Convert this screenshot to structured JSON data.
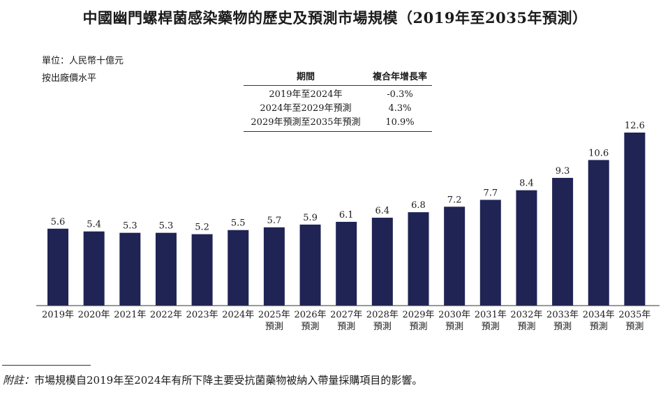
{
  "title": "中國幽門螺桿菌感染藥物的歷史及預測市場規模（2019年至2035年預測）",
  "unit_lines": [
    "單位：人民幣十億元",
    "按出廠價水平"
  ],
  "cagr_table": {
    "headers": [
      "期間",
      "複合年增長率"
    ],
    "rows": [
      {
        "period": "2019年至2024年",
        "rate": "-0.3%"
      },
      {
        "period": "2024年至2029年預測",
        "rate": "4.3%"
      },
      {
        "period": "2029年預測至2035年預測",
        "rate": "10.9%"
      }
    ]
  },
  "footnote": {
    "label": "附註：",
    "text": "市場規模自2019年至2024年有所下降主要受抗菌藥物被納入帶量採購項目的影響。"
  },
  "colors": {
    "bar": "#1f2455",
    "axis": "#333333",
    "text": "#1a1a1a"
  },
  "chart_data": {
    "type": "bar",
    "title": "中國幽門螺桿菌感染藥物的歷史及預測市場規模（2019年至2035年預測）",
    "ylabel": "人民幣十億元",
    "xlabel": "",
    "ylim": [
      0,
      12.6
    ],
    "grid": false,
    "categories": [
      [
        "2019年"
      ],
      [
        "2020年"
      ],
      [
        "2021年"
      ],
      [
        "2022年"
      ],
      [
        "2023年"
      ],
      [
        "2024年"
      ],
      [
        "2025年",
        "預測"
      ],
      [
        "2026年",
        "預測"
      ],
      [
        "2027年",
        "預測"
      ],
      [
        "2028年",
        "預測"
      ],
      [
        "2029年",
        "預測"
      ],
      [
        "2030年",
        "預測"
      ],
      [
        "2031年",
        "預測"
      ],
      [
        "2032年",
        "預測"
      ],
      [
        "2033年",
        "預測"
      ],
      [
        "2034年",
        "預測"
      ],
      [
        "2035年",
        "預測"
      ]
    ],
    "values": [
      5.6,
      5.4,
      5.3,
      5.3,
      5.2,
      5.5,
      5.7,
      5.9,
      6.1,
      6.4,
      6.8,
      7.2,
      7.7,
      8.4,
      9.3,
      10.6,
      12.6
    ],
    "value_labels": [
      "5.6",
      "5.4",
      "5.3",
      "5.3",
      "5.2",
      "5.5",
      "5.7",
      "5.9",
      "6.1",
      "6.4",
      "6.8",
      "7.2",
      "7.7",
      "8.4",
      "9.3",
      "10.6",
      "12.6"
    ]
  }
}
